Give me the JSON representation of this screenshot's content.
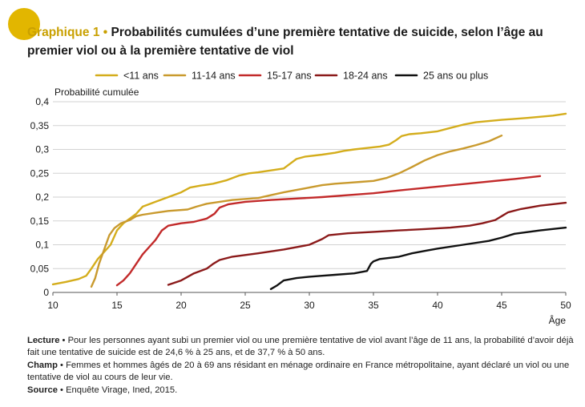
{
  "figure": {
    "label": "Graphique 1",
    "bullet": "•",
    "title": "Probabilités cumulées d’une première tentative de suicide, selon l’âge au premier viol ou à la première tentative de viol"
  },
  "chart_data": {
    "type": "line",
    "ylabel": "Probabilité cumulée",
    "xlabel": "Âge",
    "xlim": [
      10,
      50
    ],
    "ylim": [
      0,
      0.4
    ],
    "xticks": [
      "10",
      "15",
      "20",
      "25",
      "30",
      "35",
      "40",
      "45",
      "50"
    ],
    "yticks": [
      "0",
      "0,05",
      "0,1",
      "0,15",
      "0,2",
      "0,25",
      "0,3",
      "0,35",
      "0,4"
    ],
    "grid": "horizontal",
    "legend_position": "top",
    "series": [
      {
        "name": "<11 ans",
        "color": "#d4ad1c",
        "points": [
          [
            10,
            0.017
          ],
          [
            11,
            0.022
          ],
          [
            12,
            0.028
          ],
          [
            12.6,
            0.035
          ],
          [
            13,
            0.05
          ],
          [
            13.5,
            0.07
          ],
          [
            14,
            0.085
          ],
          [
            14.5,
            0.1
          ],
          [
            15,
            0.13
          ],
          [
            15.5,
            0.145
          ],
          [
            16,
            0.155
          ],
          [
            16.5,
            0.165
          ],
          [
            17,
            0.18
          ],
          [
            18,
            0.19
          ],
          [
            19,
            0.2
          ],
          [
            20,
            0.21
          ],
          [
            20.7,
            0.22
          ],
          [
            21.5,
            0.224
          ],
          [
            22.5,
            0.228
          ],
          [
            23.5,
            0.235
          ],
          [
            24.5,
            0.245
          ],
          [
            25.3,
            0.25
          ],
          [
            26,
            0.252
          ],
          [
            27,
            0.256
          ],
          [
            28,
            0.26
          ],
          [
            28.5,
            0.27
          ],
          [
            29,
            0.28
          ],
          [
            29.7,
            0.285
          ],
          [
            31,
            0.289
          ],
          [
            32,
            0.293
          ],
          [
            32.7,
            0.297
          ],
          [
            33.5,
            0.3
          ],
          [
            34.5,
            0.303
          ],
          [
            35.5,
            0.306
          ],
          [
            36.2,
            0.31
          ],
          [
            36.8,
            0.32
          ],
          [
            37.2,
            0.328
          ],
          [
            37.8,
            0.332
          ],
          [
            38.7,
            0.334
          ],
          [
            40,
            0.338
          ],
          [
            41,
            0.345
          ],
          [
            42,
            0.352
          ],
          [
            43,
            0.357
          ],
          [
            45,
            0.362
          ],
          [
            47,
            0.366
          ],
          [
            49,
            0.371
          ],
          [
            50,
            0.375
          ]
        ]
      },
      {
        "name": "11-14 ans",
        "color": "#c99a2e",
        "points": [
          [
            13,
            0.012
          ],
          [
            13.3,
            0.03
          ],
          [
            13.6,
            0.06
          ],
          [
            14,
            0.09
          ],
          [
            14.4,
            0.12
          ],
          [
            14.8,
            0.135
          ],
          [
            15.3,
            0.145
          ],
          [
            16,
            0.152
          ],
          [
            16.5,
            0.16
          ],
          [
            17,
            0.163
          ],
          [
            18,
            0.167
          ],
          [
            19,
            0.171
          ],
          [
            20.5,
            0.174
          ],
          [
            21.2,
            0.18
          ],
          [
            22,
            0.186
          ],
          [
            23,
            0.19
          ],
          [
            24,
            0.194
          ],
          [
            26,
            0.198
          ],
          [
            27,
            0.204
          ],
          [
            28,
            0.21
          ],
          [
            29,
            0.215
          ],
          [
            30,
            0.22
          ],
          [
            31,
            0.225
          ],
          [
            32,
            0.228
          ],
          [
            33,
            0.23
          ],
          [
            34,
            0.232
          ],
          [
            35,
            0.234
          ],
          [
            36,
            0.24
          ],
          [
            37,
            0.25
          ],
          [
            38,
            0.263
          ],
          [
            39,
            0.277
          ],
          [
            40,
            0.288
          ],
          [
            41,
            0.296
          ],
          [
            42,
            0.302
          ],
          [
            43,
            0.309
          ],
          [
            44,
            0.317
          ],
          [
            45,
            0.329
          ]
        ]
      },
      {
        "name": "15-17 ans",
        "color": "#c22a2a",
        "points": [
          [
            15,
            0.015
          ],
          [
            15.5,
            0.025
          ],
          [
            16,
            0.04
          ],
          [
            16.5,
            0.06
          ],
          [
            17,
            0.08
          ],
          [
            17.5,
            0.095
          ],
          [
            18,
            0.11
          ],
          [
            18.5,
            0.13
          ],
          [
            19,
            0.14
          ],
          [
            20,
            0.145
          ],
          [
            21,
            0.148
          ],
          [
            22,
            0.155
          ],
          [
            22.6,
            0.165
          ],
          [
            23,
            0.178
          ],
          [
            23.7,
            0.185
          ],
          [
            25,
            0.19
          ],
          [
            27,
            0.194
          ],
          [
            29,
            0.197
          ],
          [
            31,
            0.2
          ],
          [
            33,
            0.204
          ],
          [
            35,
            0.208
          ],
          [
            37,
            0.214
          ],
          [
            40,
            0.222
          ],
          [
            43,
            0.23
          ],
          [
            46,
            0.238
          ],
          [
            48,
            0.244
          ]
        ]
      },
      {
        "name": "18-24 ans",
        "color": "#8b1a1a",
        "points": [
          [
            19,
            0.016
          ],
          [
            20,
            0.025
          ],
          [
            21,
            0.04
          ],
          [
            22,
            0.05
          ],
          [
            22.5,
            0.06
          ],
          [
            23,
            0.068
          ],
          [
            24,
            0.075
          ],
          [
            26,
            0.082
          ],
          [
            28,
            0.09
          ],
          [
            30,
            0.1
          ],
          [
            31,
            0.112
          ],
          [
            31.5,
            0.12
          ],
          [
            33,
            0.124
          ],
          [
            35,
            0.127
          ],
          [
            37,
            0.13
          ],
          [
            39,
            0.133
          ],
          [
            41,
            0.136
          ],
          [
            42.5,
            0.14
          ],
          [
            43.5,
            0.145
          ],
          [
            44.5,
            0.152
          ],
          [
            45,
            0.16
          ],
          [
            45.5,
            0.168
          ],
          [
            46.5,
            0.175
          ],
          [
            48,
            0.182
          ],
          [
            50,
            0.188
          ]
        ]
      },
      {
        "name": "25 ans ou plus",
        "color": "#111111",
        "points": [
          [
            27,
            0.007
          ],
          [
            27.5,
            0.015
          ],
          [
            28,
            0.025
          ],
          [
            29,
            0.03
          ],
          [
            30,
            0.033
          ],
          [
            31,
            0.035
          ],
          [
            32,
            0.037
          ],
          [
            33.5,
            0.04
          ],
          [
            34.5,
            0.045
          ],
          [
            34.8,
            0.06
          ],
          [
            35,
            0.065
          ],
          [
            35.5,
            0.07
          ],
          [
            37,
            0.075
          ],
          [
            38,
            0.082
          ],
          [
            39,
            0.087
          ],
          [
            40,
            0.092
          ],
          [
            42,
            0.1
          ],
          [
            44,
            0.108
          ],
          [
            45,
            0.115
          ],
          [
            46,
            0.123
          ],
          [
            48,
            0.13
          ],
          [
            50,
            0.136
          ]
        ]
      }
    ]
  },
  "notes": {
    "lecture_label": "Lecture",
    "lecture_text": "Pour les personnes ayant subi un premier viol ou une première tentative de viol avant l’âge de 11 ans, la probabilité d’avoir déjà fait une tentative de suicide est de 24,6 % à 25 ans, et de 37,7 % à 50 ans.",
    "champ_label": "Champ",
    "champ_text": "Femmes et hommes âgés de 20 à 69 ans résidant en ménage ordinaire en France métropolitaine, ayant déclaré un viol ou une tentative de viol au cours de leur vie.",
    "source_label": "Source",
    "source_text": "Enquête Virage, Ined, 2015.",
    "bullet": "•"
  }
}
